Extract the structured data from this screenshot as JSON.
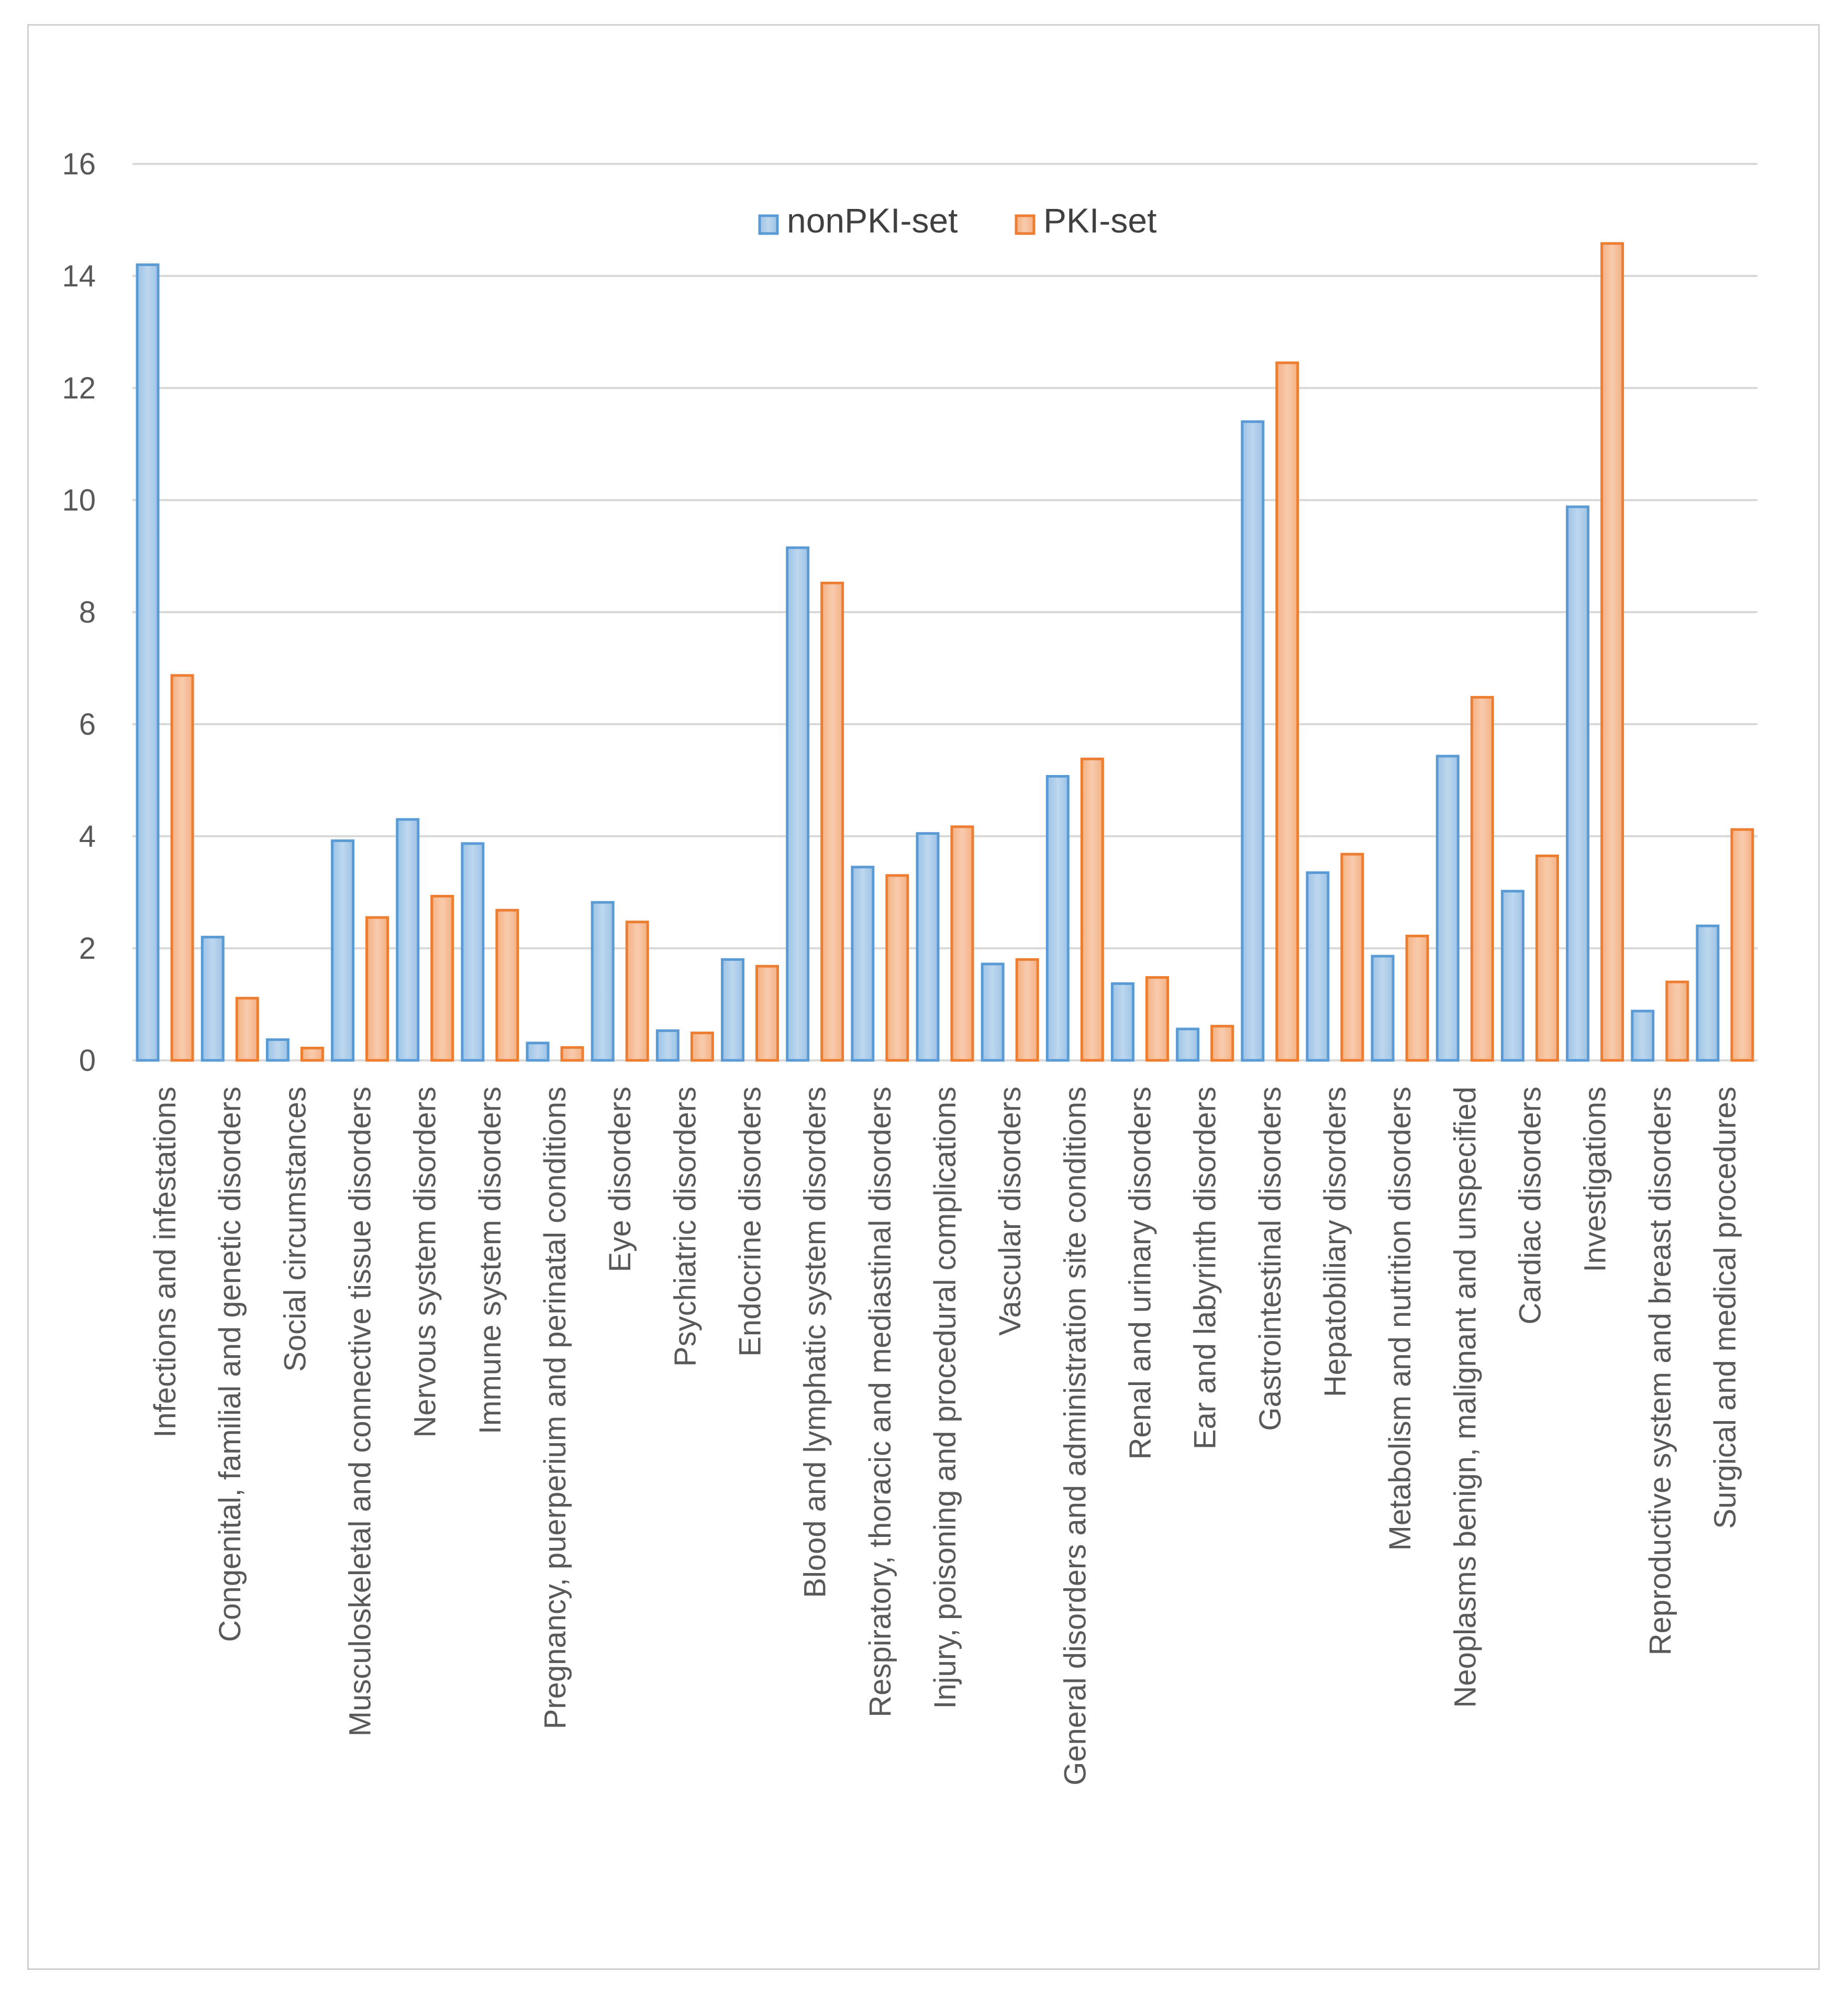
{
  "chart_data": {
    "type": "bar",
    "title": "",
    "xlabel": "",
    "ylabel": "",
    "ylim": [
      0,
      16
    ],
    "yticks": [
      0,
      2,
      4,
      6,
      8,
      10,
      12,
      14,
      16
    ],
    "grid": true,
    "legend_position": "top-center",
    "categories": [
      "Infections and infestations",
      "Congenital, familial and genetic disorders",
      "Social circumstances",
      "Musculoskeletal and connective tissue disorders",
      "Nervous system disorders",
      "Immune system disorders",
      "Pregnancy, puerperium and perinatal conditions",
      "Eye disorders",
      "Psychiatric disorders",
      "Endocrine disorders",
      "Blood and lymphatic system disorders",
      "Respiratory, thoracic and mediastinal disorders",
      "Injury, poisoning and procedural complications",
      "Vascular disorders",
      "General disorders and administration site conditions",
      "Renal and urinary disorders",
      "Ear and labyrinth disorders",
      "Gastrointestinal disorders",
      "Hepatobiliary disorders",
      "Metabolism and nutrition disorders",
      "Neoplasms benign, malignant and unspecified",
      "Cardiac disorders",
      "Investigations",
      "Reproductive system and breast disorders",
      "Surgical and medical procedures"
    ],
    "series": [
      {
        "name": "nonPKI-set",
        "color": "#5b9bd5",
        "fill_light": "#bdd7ee",
        "values": [
          14.2,
          2.2,
          0.37,
          3.92,
          4.3,
          3.87,
          0.31,
          2.82,
          0.53,
          1.8,
          9.15,
          3.45,
          4.05,
          1.72,
          5.07,
          1.37,
          0.56,
          11.4,
          3.35,
          1.86,
          5.43,
          3.02,
          9.88,
          0.88,
          2.4
        ]
      },
      {
        "name": "PKI-set",
        "color": "#ed7d31",
        "fill_light": "#f8cbad",
        "values": [
          6.87,
          1.11,
          0.22,
          2.55,
          2.93,
          2.68,
          0.23,
          2.47,
          0.49,
          1.68,
          8.52,
          3.3,
          4.17,
          1.8,
          5.38,
          1.48,
          0.61,
          12.45,
          3.68,
          2.22,
          6.48,
          3.65,
          14.58,
          1.4,
          4.12
        ]
      }
    ]
  }
}
